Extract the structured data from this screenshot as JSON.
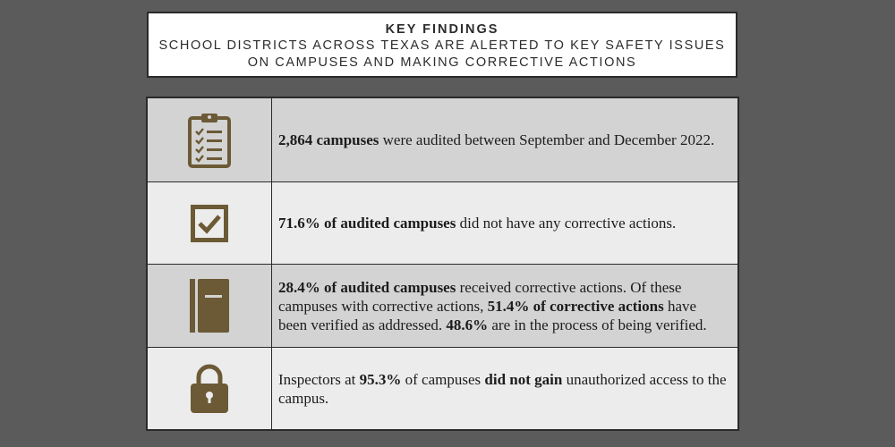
{
  "header": {
    "title": "KEY FINDINGS",
    "subtitle_line1": "SCHOOL DISTRICTS ACROSS TEXAS ARE ALERTED TO KEY SAFETY ISSUES",
    "subtitle_line2": "ON CAMPUSES AND MAKING CORRECTIVE ACTIONS"
  },
  "colors": {
    "icon_brown": "#6b5a35",
    "page_background": "#5b5b5b",
    "row_shaded": "#d3d3d3",
    "row_light": "#ececec"
  },
  "findings": [
    {
      "icon": "clipboard-checklist-icon",
      "bold1": "2,864 campuses",
      "text1": " were audited between September and December 2022."
    },
    {
      "icon": "checkbox-icon",
      "bold1": "71.6% of audited campuses",
      "text1": " did not have any corrective actions."
    },
    {
      "icon": "notebook-icon",
      "bold1": "28.4% of audited campuses",
      "text1": " received corrective actions. Of these campuses with corrective actions, ",
      "bold2": "51.4% of corrective actions",
      "text2": " have been verified as addressed. ",
      "bold3": "48.6%",
      "text3": " are in the process of being verified."
    },
    {
      "icon": "padlock-icon",
      "text1": "Inspectors at ",
      "bold1": "95.3%",
      "text2": " of campuses ",
      "bold2": "did not gain",
      "text3": " unauthorized access to the campus."
    }
  ]
}
